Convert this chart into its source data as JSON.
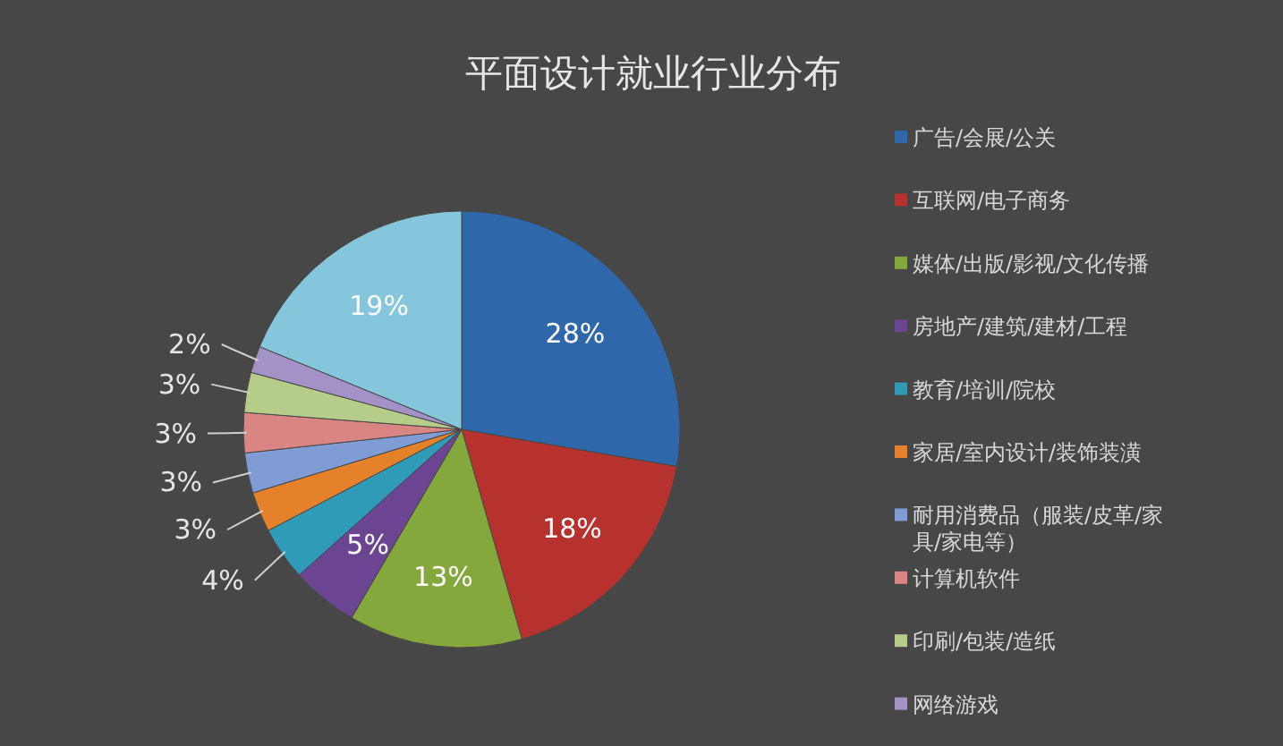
{
  "chart_data": {
    "type": "pie",
    "title": "平面设计就业行业分布",
    "categories": [
      "广告/会展/公关",
      "互联网/电子商务",
      "媒体/出版/影视/文化传播",
      "房地产/建筑/建材/工程",
      "教育/培训/院校",
      "家居/室内设计/装饰装潢",
      "耐用消费品（服装/皮革/家具/家电等）",
      "计算机软件",
      "印刷/包装/造纸",
      "网络游戏",
      null
    ],
    "values": [
      28,
      18,
      13,
      5,
      4,
      3,
      3,
      3,
      3,
      2,
      19
    ],
    "colors": [
      "#2f67ab",
      "#b7312f",
      "#85a83c",
      "#6b4592",
      "#2f9bb7",
      "#e5812b",
      "#7f9cd5",
      "#d98583",
      "#b6cd8a",
      "#a492c6",
      "#86c6dc"
    ],
    "value_labels": [
      "28%",
      "18%",
      "13%",
      "5%",
      "4%",
      "3%",
      "3%",
      "3%",
      "3%",
      "2%",
      "19%"
    ],
    "legend": "right"
  }
}
